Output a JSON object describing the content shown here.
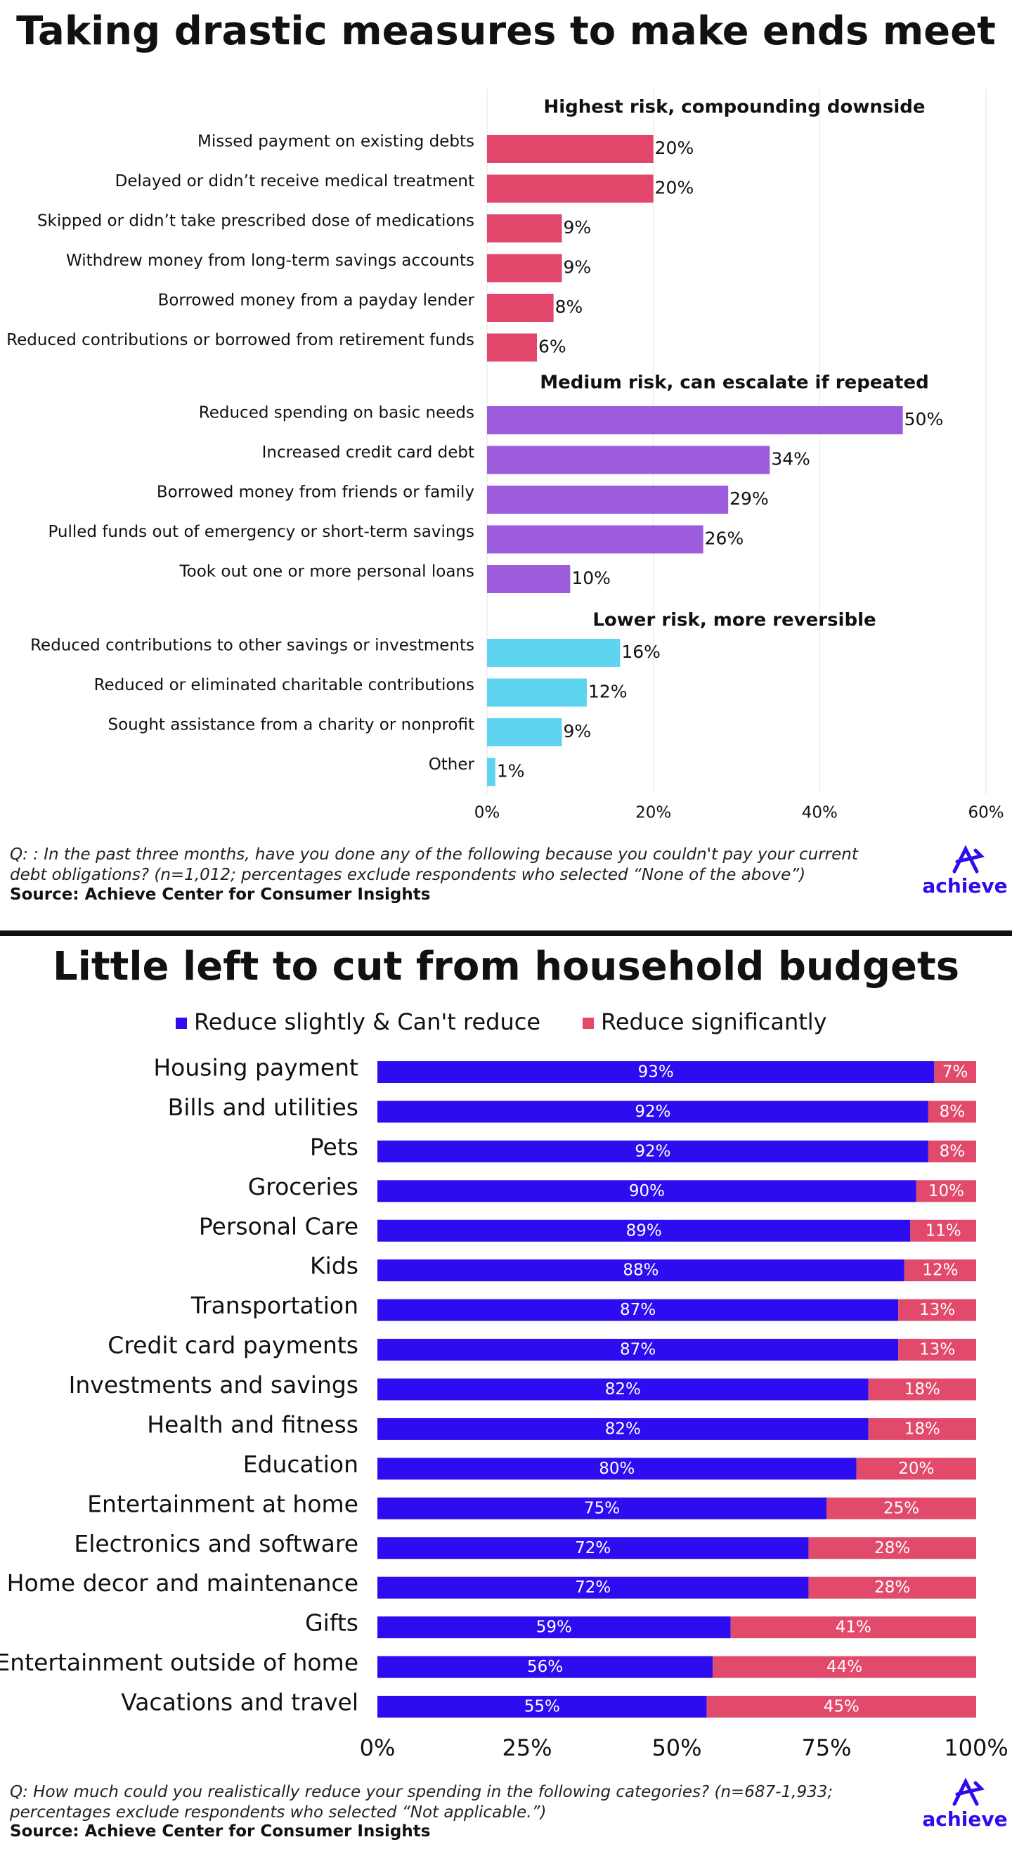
{
  "chart_data": [
    {
      "type": "bar",
      "orientation": "horizontal",
      "title": "Taking drastic measures to make ends meet",
      "groups": [
        {
          "title": "Highest risk, compounding downside",
          "color": "#e2476b",
          "categories": [
            "Missed payment on existing debts",
            "Delayed or didn’t receive medical treatment",
            "Skipped or didn’t take prescribed dose of medications",
            "Withdrew money from long-term savings accounts",
            "Borrowed money from a payday lender",
            "Reduced contributions or borrowed from retirement funds"
          ],
          "values": [
            20,
            20,
            9,
            9,
            8,
            6
          ],
          "value_labels": [
            "20%",
            "20%",
            "9%",
            "9%",
            "8%",
            "6%"
          ]
        },
        {
          "title": "Medium risk, can escalate if repeated",
          "color": "#9c5cdc",
          "categories": [
            "Reduced spending on basic needs",
            "Increased credit card debt",
            "Borrowed money from friends or family",
            "Pulled funds out of emergency or short-term savings",
            "Took out one or more personal loans"
          ],
          "values": [
            50,
            34,
            29,
            26,
            10
          ],
          "value_labels": [
            "50%",
            "34%",
            "29%",
            "26%",
            "10%"
          ]
        },
        {
          "title": "Lower risk, more reversible",
          "color": "#5ed4f1",
          "categories": [
            "Reduced contributions to other savings or investments",
            "Reduced or eliminated charitable contributions",
            "Sought assistance from a charity or nonprofit",
            "Other"
          ],
          "values": [
            16,
            12,
            9,
            1
          ],
          "value_labels": [
            "16%",
            "12%",
            "9%",
            "1%"
          ]
        }
      ],
      "xlim": [
        0,
        60
      ],
      "xticks": [
        {
          "value": 0,
          "label": "0%"
        },
        {
          "value": 20,
          "label": "20%"
        },
        {
          "value": 40,
          "label": "40%"
        },
        {
          "value": 60,
          "label": "60%"
        }
      ],
      "grid": true,
      "note": "Q: : In the past three months, have you done any of the following because you couldn't pay your current debt obligations? (n=1,012; percentages exclude respondents who selected “None of the above”)",
      "source": "Source: Achieve Center for Consumer Insights",
      "logo": "achieve"
    },
    {
      "type": "stacked_bar",
      "orientation": "horizontal",
      "title": "Little left to cut from household budgets",
      "categories": [
        "Housing payment",
        "Bills and utilities",
        "Pets",
        "Groceries",
        "Personal Care",
        "Kids",
        "Transportation",
        "Credit card payments",
        "Investments and savings",
        "Health and fitness",
        "Education",
        "Entertainment at home",
        "Electronics and software",
        "Home decor and maintenance",
        "Gifts",
        "Entertainment outside of home",
        "Vacations and travel"
      ],
      "series": [
        {
          "name": "Reduce slightly & Can't reduce",
          "color": "#2d0cf0",
          "values": [
            93,
            92,
            92,
            90,
            89,
            88,
            87,
            87,
            82,
            82,
            80,
            75,
            72,
            72,
            59,
            56,
            55
          ],
          "value_labels": [
            "93%",
            "92%",
            "92%",
            "90%",
            "89%",
            "88%",
            "87%",
            "87%",
            "82%",
            "82%",
            "80%",
            "75%",
            "72%",
            "72%",
            "59%",
            "56%",
            "55%"
          ]
        },
        {
          "name": "Reduce significantly",
          "color": "#e24a6c",
          "values": [
            7,
            8,
            8,
            10,
            11,
            12,
            13,
            13,
            18,
            18,
            20,
            25,
            28,
            28,
            41,
            44,
            45
          ],
          "value_labels": [
            "7%",
            "8%",
            "8%",
            "10%",
            "11%",
            "12%",
            "13%",
            "13%",
            "18%",
            "18%",
            "20%",
            "25%",
            "28%",
            "28%",
            "41%",
            "44%",
            "45%"
          ]
        }
      ],
      "xlim": [
        0,
        100
      ],
      "xticks": [
        {
          "value": 0,
          "label": "0%"
        },
        {
          "value": 25,
          "label": "25%"
        },
        {
          "value": 50,
          "label": "50%"
        },
        {
          "value": 75,
          "label": "75%"
        },
        {
          "value": 100,
          "label": "100%"
        }
      ],
      "note": "Q: How much could you realistically reduce your spending in the following categories? (n=687-1,933; percentages exclude respondents who selected “Not applicable.”)",
      "source": "Source: Achieve Center for Consumer Insights",
      "logo": "achieve"
    }
  ]
}
